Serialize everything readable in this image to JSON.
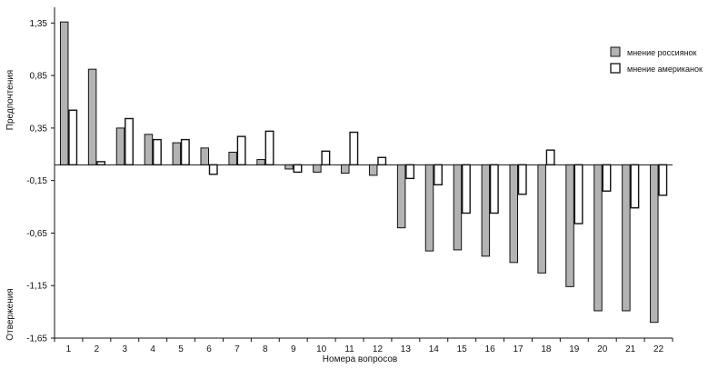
{
  "chart_data": {
    "type": "bar",
    "title": "",
    "xlabel": "Номера вопросов",
    "ylabel_top": "Предпочтения",
    "ylabel_bottom": "Отвержения",
    "ylim": [
      -1.65,
      1.5
    ],
    "yticks": [
      "1,35",
      "0,85",
      "0,35",
      "-0,15",
      "-0,65",
      "-1,15",
      "-1,65"
    ],
    "ytick_values": [
      1.35,
      0.85,
      0.35,
      -0.15,
      -0.65,
      -1.15,
      -1.65
    ],
    "categories": [
      "1",
      "2",
      "3",
      "4",
      "5",
      "6",
      "7",
      "8",
      "9",
      "10",
      "11",
      "12",
      "13",
      "14",
      "15",
      "16",
      "17",
      "18",
      "19",
      "20",
      "21",
      "22"
    ],
    "series": [
      {
        "name": "мнение россиянок",
        "color": "#b3b3b3",
        "values": [
          1.36,
          0.91,
          0.35,
          0.29,
          0.21,
          0.16,
          0.12,
          0.05,
          -0.04,
          -0.07,
          -0.08,
          -0.1,
          -0.6,
          -0.82,
          -0.81,
          -0.87,
          -0.93,
          -1.03,
          -1.16,
          -1.39,
          -1.39,
          -1.5
        ]
      },
      {
        "name": "мнение американок",
        "color": "#ffffff",
        "values": [
          0.52,
          0.03,
          0.44,
          0.24,
          0.24,
          -0.09,
          0.27,
          0.32,
          -0.07,
          0.13,
          0.31,
          0.07,
          -0.13,
          -0.19,
          -0.46,
          -0.46,
          -0.28,
          0.14,
          -0.56,
          -0.25,
          -0.41,
          -0.29
        ]
      }
    ],
    "legend_position": "top-right",
    "grid": false
  }
}
